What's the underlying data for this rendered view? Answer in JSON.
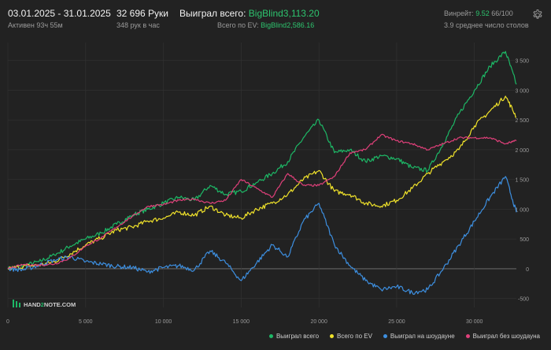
{
  "header": {
    "date_range": "03.01.2025 - 31.01.2025",
    "active": "Активен 93ч 55м",
    "hands": "32 696 Руки",
    "hands_per_hour": "348 рук в час",
    "won_total_label": "Выиграл всего:",
    "won_total_value": "BigBlind3,113.20",
    "ev_total_label": "Всего по EV:",
    "ev_total_value": "BigBlind2,586.16",
    "winrate_label": "Винрейт:",
    "winrate_value": "9.52",
    "winrate_tail": "66/100",
    "tables": "3.9 среднее число столов"
  },
  "watermark": {
    "brand_left": "HAND",
    "brand_mid": "2",
    "brand_right": "NOTE.COM"
  },
  "colors": {
    "won": "#1db866",
    "ev": "#f0e22a",
    "showdown": "#3d8fe0",
    "nonshowdown": "#e0407a",
    "axis_text": "#9a9a9a",
    "grid": "#333333",
    "zero": "#777777"
  },
  "chart_data": {
    "type": "line",
    "xlim": [
      0,
      32696
    ],
    "ylim": [
      -650,
      3800
    ],
    "x_ticks": [
      0,
      5000,
      10000,
      15000,
      20000,
      25000,
      30000
    ],
    "x_tick_labels": [
      "0",
      "5 000",
      "10 000",
      "15 000",
      "20 000",
      "25 000",
      "30 000"
    ],
    "y_ticks": [
      -500,
      0,
      500,
      1000,
      1500,
      2000,
      2500,
      3000,
      3500
    ],
    "y_tick_labels": [
      "-500",
      "0",
      "500",
      "1 000",
      "1 500",
      "2 000",
      "2 500",
      "3 000",
      "3 500"
    ],
    "x": [
      0,
      1000,
      2000,
      3000,
      4000,
      5000,
      6000,
      7000,
      8000,
      9000,
      10000,
      11000,
      12000,
      13000,
      14000,
      15000,
      16000,
      17000,
      18000,
      19000,
      20000,
      21000,
      22000,
      23000,
      24000,
      25000,
      26000,
      27000,
      28000,
      29000,
      30000,
      31000,
      32000,
      32696
    ],
    "series": [
      {
        "name": "Выиграл всего",
        "color": "#1db866",
        "values": [
          0,
          50,
          120,
          230,
          380,
          500,
          600,
          750,
          900,
          1000,
          1100,
          1200,
          1150,
          1400,
          1250,
          1300,
          1450,
          1600,
          1800,
          2200,
          2500,
          1950,
          2000,
          1800,
          1900,
          1850,
          1700,
          1650,
          2100,
          2600,
          3000,
          3400,
          3650,
          3100
        ]
      },
      {
        "name": "Всего по EV",
        "color": "#f0e22a",
        "values": [
          0,
          40,
          60,
          120,
          250,
          400,
          520,
          650,
          700,
          800,
          850,
          950,
          900,
          1050,
          900,
          850,
          1000,
          1100,
          1250,
          1500,
          1650,
          1300,
          1250,
          1100,
          1050,
          1150,
          1350,
          1600,
          1800,
          2000,
          2400,
          2650,
          2900,
          2550
        ]
      },
      {
        "name": "Выиграл на шоудауне",
        "color": "#3d8fe0",
        "values": [
          0,
          -20,
          60,
          150,
          200,
          120,
          80,
          40,
          20,
          -50,
          20,
          50,
          -20,
          300,
          100,
          -200,
          100,
          400,
          200,
          800,
          1100,
          400,
          50,
          -200,
          -350,
          -300,
          -400,
          -350,
          0,
          400,
          800,
          1200,
          1550,
          950
        ]
      },
      {
        "name": "Выиграл без шоудауна",
        "color": "#e0407a",
        "values": [
          0,
          70,
          60,
          80,
          180,
          380,
          520,
          700,
          880,
          1050,
          1080,
          1150,
          1170,
          1100,
          1150,
          1500,
          1350,
          1200,
          1600,
          1400,
          1400,
          1550,
          1950,
          2000,
          2250,
          2150,
          2100,
          2000,
          2100,
          2200,
          2200,
          2200,
          2100,
          2150
        ]
      }
    ]
  }
}
